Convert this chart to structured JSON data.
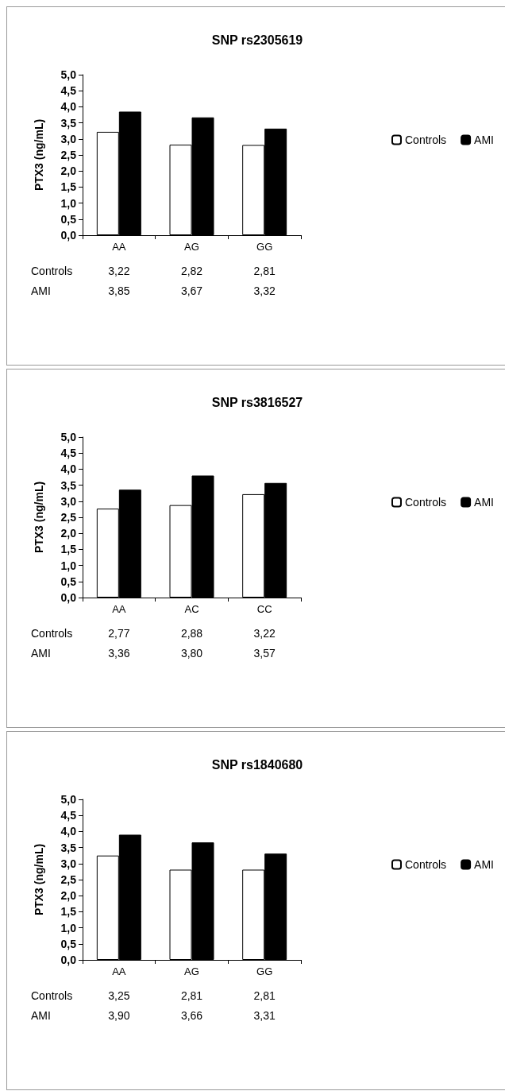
{
  "chart_data": [
    {
      "type": "bar",
      "title": "SNP rs2305619",
      "ylabel": "PTX3 (ng/mL)",
      "categories": [
        "AA",
        "AG",
        "GG"
      ],
      "series": [
        {
          "name": "Controls",
          "color": "#ffffff",
          "values": [
            3.22,
            2.82,
            2.81
          ],
          "value_labels": [
            "3,22",
            "2,82",
            "2,81"
          ]
        },
        {
          "name": "AMI",
          "color": "#000000",
          "values": [
            3.85,
            3.67,
            3.32
          ],
          "value_labels": [
            "3,85",
            "3,67",
            "3,32"
          ]
        }
      ],
      "ylim": [
        0,
        5
      ],
      "yticks": [
        {
          "value": 0,
          "label": "0,0"
        },
        {
          "value": 0.5,
          "label": "0,5"
        },
        {
          "value": 1,
          "label": "1,0"
        },
        {
          "value": 1.5,
          "label": "1,5"
        },
        {
          "value": 2,
          "label": "2,0"
        },
        {
          "value": 2.5,
          "label": "2,5"
        },
        {
          "value": 3,
          "label": "3,0"
        },
        {
          "value": 3.5,
          "label": "3,5"
        },
        {
          "value": 4,
          "label": "4,0"
        },
        {
          "value": 4.5,
          "label": "4,5"
        },
        {
          "value": 5,
          "label": "5,0"
        }
      ],
      "legend": "right"
    },
    {
      "type": "bar",
      "title": "SNP rs3816527",
      "ylabel": "PTX3 (ng/mL)",
      "categories": [
        "AA",
        "AC",
        "CC"
      ],
      "series": [
        {
          "name": "Controls",
          "color": "#ffffff",
          "values": [
            2.77,
            2.88,
            3.22
          ],
          "value_labels": [
            "2,77",
            "2,88",
            "3,22"
          ]
        },
        {
          "name": "AMI",
          "color": "#000000",
          "values": [
            3.36,
            3.8,
            3.57
          ],
          "value_labels": [
            "3,36",
            "3,80",
            "3,57"
          ]
        }
      ],
      "ylim": [
        0,
        5
      ],
      "yticks": [
        {
          "value": 0,
          "label": "0,0"
        },
        {
          "value": 0.5,
          "label": "0,5"
        },
        {
          "value": 1,
          "label": "1,0"
        },
        {
          "value": 1.5,
          "label": "1,5"
        },
        {
          "value": 2,
          "label": "2,0"
        },
        {
          "value": 2.5,
          "label": "2,5"
        },
        {
          "value": 3,
          "label": "3,0"
        },
        {
          "value": 3.5,
          "label": "3,5"
        },
        {
          "value": 4,
          "label": "4,0"
        },
        {
          "value": 4.5,
          "label": "4,5"
        },
        {
          "value": 5,
          "label": "5,0"
        }
      ],
      "legend": "right"
    },
    {
      "type": "bar",
      "title": "SNP rs1840680",
      "ylabel": "PTX3 (ng/mL)",
      "categories": [
        "AA",
        "AG",
        "GG"
      ],
      "series": [
        {
          "name": "Controls",
          "color": "#ffffff",
          "values": [
            3.25,
            2.81,
            2.81
          ],
          "value_labels": [
            "3,25",
            "2,81",
            "2,81"
          ]
        },
        {
          "name": "AMI",
          "color": "#000000",
          "values": [
            3.9,
            3.66,
            3.31
          ],
          "value_labels": [
            "3,90",
            "3,66",
            "3,31"
          ]
        }
      ],
      "ylim": [
        0,
        5
      ],
      "yticks": [
        {
          "value": 0,
          "label": "0,0"
        },
        {
          "value": 0.5,
          "label": "0,5"
        },
        {
          "value": 1,
          "label": "1,0"
        },
        {
          "value": 1.5,
          "label": "1,5"
        },
        {
          "value": 2,
          "label": "2,0"
        },
        {
          "value": 2.5,
          "label": "2,5"
        },
        {
          "value": 3,
          "label": "3,0"
        },
        {
          "value": 3.5,
          "label": "3,5"
        },
        {
          "value": 4,
          "label": "4,0"
        },
        {
          "value": 4.5,
          "label": "4,5"
        },
        {
          "value": 5,
          "label": "5,0"
        }
      ],
      "legend": "right"
    }
  ]
}
